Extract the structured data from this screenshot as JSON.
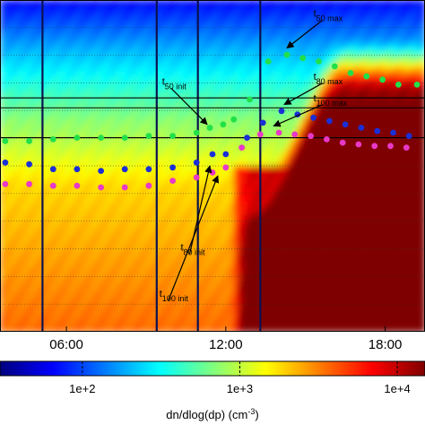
{
  "chart_data": {
    "type": "heatmap",
    "x_axis": {
      "tick_labels": [
        "06:00",
        "12:00",
        "18:00"
      ],
      "tick_hours": [
        6,
        12,
        18
      ],
      "range_hours": [
        3.5,
        19.5
      ]
    },
    "colorbar": {
      "tick_labels": [
        "1e+2",
        "1e+3",
        "1e+4"
      ],
      "tick_values": [
        100,
        1000,
        10000
      ],
      "range": [
        30,
        15000
      ],
      "scale": "log",
      "label_prefix": "dn/dlog(dp) (cm",
      "label_sup": "-3",
      "label_suffix": ")",
      "colors": [
        "#00007f",
        "#0000ff",
        "#007fff",
        "#00ffff",
        "#7fff7f",
        "#ffff00",
        "#ff7f00",
        "#ff0000",
        "#7f0000"
      ]
    },
    "y_axis": {
      "range": [
        0,
        1
      ],
      "tick_labels": []
    },
    "series": [
      {
        "color": "#22e04a",
        "points": [
          [
            3.7,
            0.575
          ],
          [
            4.6,
            0.575
          ],
          [
            5.5,
            0.58
          ],
          [
            6.4,
            0.585
          ],
          [
            7.3,
            0.585
          ],
          [
            8.2,
            0.585
          ],
          [
            9.1,
            0.59
          ],
          [
            10.0,
            0.59
          ],
          [
            10.9,
            0.6
          ],
          [
            11.4,
            0.615
          ],
          [
            11.9,
            0.625
          ],
          [
            12.3,
            0.64
          ],
          [
            12.9,
            0.7
          ],
          [
            13.6,
            0.815
          ],
          [
            14.3,
            0.835
          ],
          [
            14.9,
            0.825
          ],
          [
            15.5,
            0.815
          ],
          [
            16.1,
            0.8
          ],
          [
            16.7,
            0.78
          ],
          [
            17.3,
            0.77
          ],
          [
            17.9,
            0.76
          ],
          [
            18.5,
            0.745
          ],
          [
            19.2,
            0.745
          ]
        ]
      },
      {
        "color": "#1b2fd6",
        "points": [
          [
            3.7,
            0.51
          ],
          [
            4.6,
            0.505
          ],
          [
            5.5,
            0.49
          ],
          [
            6.4,
            0.49
          ],
          [
            7.3,
            0.485
          ],
          [
            8.2,
            0.49
          ],
          [
            9.1,
            0.49
          ],
          [
            10.0,
            0.495
          ],
          [
            10.9,
            0.51
          ],
          [
            11.5,
            0.535
          ],
          [
            12.0,
            0.535
          ],
          [
            12.8,
            0.585
          ],
          [
            13.4,
            0.63
          ],
          [
            14.1,
            0.665
          ],
          [
            14.7,
            0.655
          ],
          [
            15.3,
            0.645
          ],
          [
            15.9,
            0.635
          ],
          [
            16.5,
            0.625
          ],
          [
            17.1,
            0.615
          ],
          [
            17.7,
            0.605
          ],
          [
            18.3,
            0.6
          ],
          [
            18.9,
            0.59
          ]
        ]
      },
      {
        "color": "#e838c8",
        "points": [
          [
            3.7,
            0.445
          ],
          [
            4.6,
            0.445
          ],
          [
            5.5,
            0.44
          ],
          [
            6.4,
            0.44
          ],
          [
            7.3,
            0.435
          ],
          [
            8.2,
            0.435
          ],
          [
            9.1,
            0.44
          ],
          [
            10.0,
            0.455
          ],
          [
            10.9,
            0.465
          ],
          [
            11.5,
            0.48
          ],
          [
            12.0,
            0.495
          ],
          [
            12.6,
            0.555
          ],
          [
            13.3,
            0.595
          ],
          [
            14.0,
            0.6
          ],
          [
            14.6,
            0.595
          ],
          [
            15.2,
            0.59
          ],
          [
            15.8,
            0.58
          ],
          [
            16.4,
            0.57
          ],
          [
            17.0,
            0.565
          ],
          [
            17.6,
            0.56
          ],
          [
            18.2,
            0.56
          ],
          [
            18.8,
            0.555
          ]
        ]
      }
    ],
    "annotations": [
      {
        "main": "t",
        "sub": "50 max",
        "x": 15.3,
        "y": 0.95,
        "arrow_to": [
          14.3,
          0.855
        ]
      },
      {
        "main": "t",
        "sub": "80 max",
        "x": 15.3,
        "y": 0.76,
        "arrow_to": [
          14.2,
          0.685
        ]
      },
      {
        "main": "t",
        "sub": "100 max",
        "x": 15.3,
        "y": 0.695,
        "arrow_to": [
          13.8,
          0.62
        ]
      },
      {
        "main": "t",
        "sub": "50 init",
        "x": 9.6,
        "y": 0.745,
        "arrow_to": [
          11.3,
          0.625
        ]
      },
      {
        "main": "t",
        "sub": "80 init",
        "x": 10.3,
        "y": 0.245,
        "arrow_to": [
          11.4,
          0.5
        ]
      },
      {
        "main": "t",
        "sub": "100 init",
        "x": 9.5,
        "y": 0.105,
        "arrow_to": [
          11.7,
          0.47
        ]
      }
    ],
    "vertical_lines_hours": [
      5.1,
      9.4,
      10.95,
      13.3
    ],
    "horizontal_lines_y": [
      0.705,
      0.675,
      0.585
    ]
  }
}
